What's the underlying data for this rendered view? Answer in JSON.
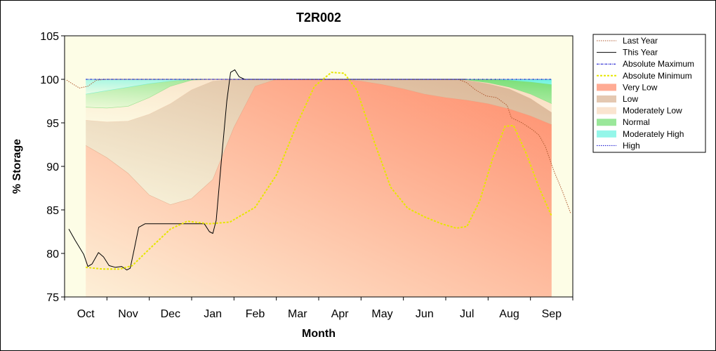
{
  "chart_data": {
    "type": "area",
    "title": "T2R002",
    "xlabel": "Month",
    "ylabel": "% Storage",
    "ylim": [
      75,
      105
    ],
    "yticks": [
      75,
      80,
      85,
      90,
      95,
      100,
      105
    ],
    "xlim": [
      -0.5,
      11.5
    ],
    "categories": [
      "Oct",
      "Nov",
      "Dec",
      "Jan",
      "Feb",
      "Mar",
      "Apr",
      "May",
      "Jun",
      "Jul",
      "Aug",
      "Sep"
    ],
    "legend_position": "right",
    "bands_x": [
      0,
      0.5,
      1,
      1.5,
      2,
      2.5,
      3,
      3.5,
      4,
      4.5,
      5,
      5.5,
      6,
      6.5,
      7,
      7.5,
      8,
      8.5,
      9,
      9.5,
      10,
      10.5,
      11
    ],
    "bands": [
      {
        "name": "High",
        "color": "#0000cc",
        "upper": [
          100,
          100,
          100,
          100,
          100,
          100,
          100,
          100,
          100,
          100,
          100,
          100,
          100,
          100,
          100,
          100,
          100,
          100,
          100,
          100,
          100,
          100,
          100
        ],
        "lower": [
          100,
          100,
          100,
          100,
          100,
          100,
          100,
          100,
          100,
          100,
          100,
          100,
          100,
          100,
          100,
          100,
          100,
          100,
          100,
          100,
          100,
          100,
          100
        ]
      },
      {
        "name": "Moderately High",
        "color": "#66f2e0",
        "upper": [
          100,
          100,
          100,
          100,
          100,
          100,
          100,
          100,
          100,
          100,
          100,
          100,
          100,
          100,
          100,
          100,
          100,
          100,
          100,
          100,
          100,
          100,
          100
        ],
        "lower": [
          98.3,
          98.7,
          99.1,
          99.5,
          99.8,
          100,
          100,
          100,
          100,
          100,
          100,
          100,
          100,
          100,
          100,
          100,
          100,
          100,
          100,
          100,
          99.9,
          99.7,
          99.4
        ]
      },
      {
        "name": "Normal",
        "color": "#6fdd6f",
        "upper": [
          98.3,
          98.7,
          99.1,
          99.5,
          99.8,
          100,
          100,
          100,
          100,
          100,
          100,
          100,
          100,
          100,
          100,
          100,
          100,
          100,
          100,
          100,
          99.9,
          99.7,
          99.4
        ],
        "lower": [
          96.8,
          96.7,
          96.9,
          97.9,
          99.2,
          99.9,
          100,
          100,
          100,
          100,
          100,
          100,
          100,
          100,
          100,
          100,
          100,
          100,
          99.9,
          99.6,
          99.1,
          98.3,
          97.2
        ]
      },
      {
        "name": "Moderately Low",
        "color": "#f8d8bc",
        "upper": [
          96.8,
          96.7,
          96.9,
          97.9,
          99.2,
          99.9,
          100,
          100,
          100,
          100,
          100,
          100,
          100,
          100,
          100,
          100,
          100,
          100,
          99.9,
          99.6,
          99.1,
          98.3,
          97.2
        ],
        "lower": [
          95.3,
          95.1,
          95.2,
          96.0,
          97.2,
          98.8,
          99.8,
          100,
          100,
          100,
          100,
          100,
          100,
          100,
          100,
          100,
          100,
          100,
          99.9,
          99.5,
          98.9,
          97.8,
          96.2
        ]
      },
      {
        "name": "Low",
        "color": "#d8b090",
        "upper": [
          95.3,
          95.1,
          95.2,
          96.0,
          97.2,
          98.8,
          99.8,
          100,
          100,
          100,
          100,
          100,
          100,
          100,
          100,
          100,
          100,
          100,
          99.9,
          99.5,
          98.9,
          97.8,
          96.2
        ],
        "lower": [
          92.4,
          91.0,
          89.2,
          86.7,
          85.6,
          86.3,
          88.5,
          94.5,
          99.2,
          100,
          100,
          100,
          100,
          99.8,
          99.4,
          98.9,
          98.3,
          97.9,
          97.6,
          97.2,
          96.6,
          95.8,
          94.8
        ]
      },
      {
        "name": "Very Low",
        "color": "#ff8866",
        "upper": [
          92.4,
          91.0,
          89.2,
          86.7,
          85.6,
          86.3,
          88.5,
          94.5,
          99.2,
          100,
          100,
          100,
          100,
          99.8,
          99.4,
          98.9,
          98.3,
          97.9,
          97.6,
          97.2,
          96.6,
          95.8,
          94.8
        ],
        "lower": [
          75,
          75,
          75,
          75,
          75,
          75,
          75,
          75,
          75,
          75,
          75,
          75,
          75,
          75,
          75,
          75,
          75,
          75,
          75,
          75,
          75,
          75,
          75
        ]
      }
    ],
    "series": [
      {
        "name": "Last Year",
        "color": "#b05a30",
        "style": "dotted",
        "points": [
          [
            -0.45,
            99.9
          ],
          [
            -0.35,
            99.6
          ],
          [
            -0.15,
            99.0
          ],
          [
            0.05,
            99.2
          ],
          [
            0.25,
            99.9
          ],
          [
            0.5,
            100
          ],
          [
            1,
            100
          ],
          [
            2,
            100
          ],
          [
            3,
            100
          ],
          [
            4,
            100
          ],
          [
            5,
            100
          ],
          [
            6,
            100
          ],
          [
            7,
            100
          ],
          [
            8,
            100
          ],
          [
            8.8,
            100
          ],
          [
            9.0,
            99.6
          ],
          [
            9.2,
            98.8
          ],
          [
            9.45,
            98.1
          ],
          [
            9.7,
            97.9
          ],
          [
            9.95,
            97.0
          ],
          [
            10.05,
            95.6
          ],
          [
            10.3,
            95.0
          ],
          [
            10.55,
            94.2
          ],
          [
            10.7,
            93.6
          ],
          [
            10.85,
            92.3
          ],
          [
            11.05,
            89.5
          ],
          [
            11.25,
            87.2
          ],
          [
            11.45,
            84.6
          ]
        ]
      },
      {
        "name": "This Year",
        "color": "#000000",
        "style": "solid",
        "points": [
          [
            -0.4,
            82.8
          ],
          [
            -0.25,
            81.5
          ],
          [
            -0.05,
            79.9
          ],
          [
            0.05,
            78.5
          ],
          [
            0.15,
            78.8
          ],
          [
            0.3,
            80.1
          ],
          [
            0.42,
            79.6
          ],
          [
            0.55,
            78.6
          ],
          [
            0.7,
            78.4
          ],
          [
            0.85,
            78.5
          ],
          [
            0.97,
            78.1
          ],
          [
            1.05,
            78.3
          ],
          [
            1.15,
            80.6
          ],
          [
            1.25,
            83.0
          ],
          [
            1.4,
            83.4
          ],
          [
            1.6,
            83.4
          ],
          [
            2.0,
            83.4
          ],
          [
            2.5,
            83.4
          ],
          [
            2.8,
            83.4
          ],
          [
            2.92,
            82.5
          ],
          [
            3.0,
            82.3
          ],
          [
            3.08,
            83.8
          ],
          [
            3.2,
            90.5
          ],
          [
            3.33,
            97.5
          ],
          [
            3.42,
            100.8
          ],
          [
            3.52,
            101.1
          ],
          [
            3.62,
            100.3
          ],
          [
            3.75,
            100
          ],
          [
            5,
            100
          ],
          [
            7,
            100
          ],
          [
            9,
            100
          ]
        ]
      },
      {
        "name": "Absolute Maximum",
        "color": "#0000cc",
        "style": "dashdot",
        "points": [
          [
            0,
            100
          ],
          [
            11,
            100
          ]
        ]
      },
      {
        "name": "Absolute Minimum",
        "color": "#e6e600",
        "style": "dashed",
        "points": [
          [
            0,
            78.4
          ],
          [
            0.4,
            78.2
          ],
          [
            0.8,
            78.2
          ],
          [
            1.1,
            78.6
          ],
          [
            1.5,
            80.5
          ],
          [
            2.0,
            82.8
          ],
          [
            2.4,
            83.7
          ],
          [
            2.9,
            83.4
          ],
          [
            3.4,
            83.6
          ],
          [
            4.0,
            85.3
          ],
          [
            4.5,
            89.0
          ],
          [
            5.0,
            95.0
          ],
          [
            5.4,
            99.2
          ],
          [
            5.8,
            100.8
          ],
          [
            6.1,
            100.7
          ],
          [
            6.4,
            98.8
          ],
          [
            6.8,
            93.0
          ],
          [
            7.2,
            87.6
          ],
          [
            7.6,
            85.2
          ],
          [
            8.0,
            84.2
          ],
          [
            8.4,
            83.4
          ],
          [
            8.75,
            82.9
          ],
          [
            9.0,
            83.1
          ],
          [
            9.3,
            86.0
          ],
          [
            9.6,
            90.8
          ],
          [
            9.9,
            94.6
          ],
          [
            10.1,
            94.7
          ],
          [
            10.4,
            91.5
          ],
          [
            10.7,
            87.6
          ],
          [
            11.0,
            84.3
          ]
        ]
      }
    ],
    "legend": [
      "Last Year",
      "This Year",
      "Absolute Maximum",
      "Absolute Minimum",
      "Very Low",
      "Low",
      "Moderately Low",
      "Normal",
      "Moderately High",
      "High"
    ]
  }
}
